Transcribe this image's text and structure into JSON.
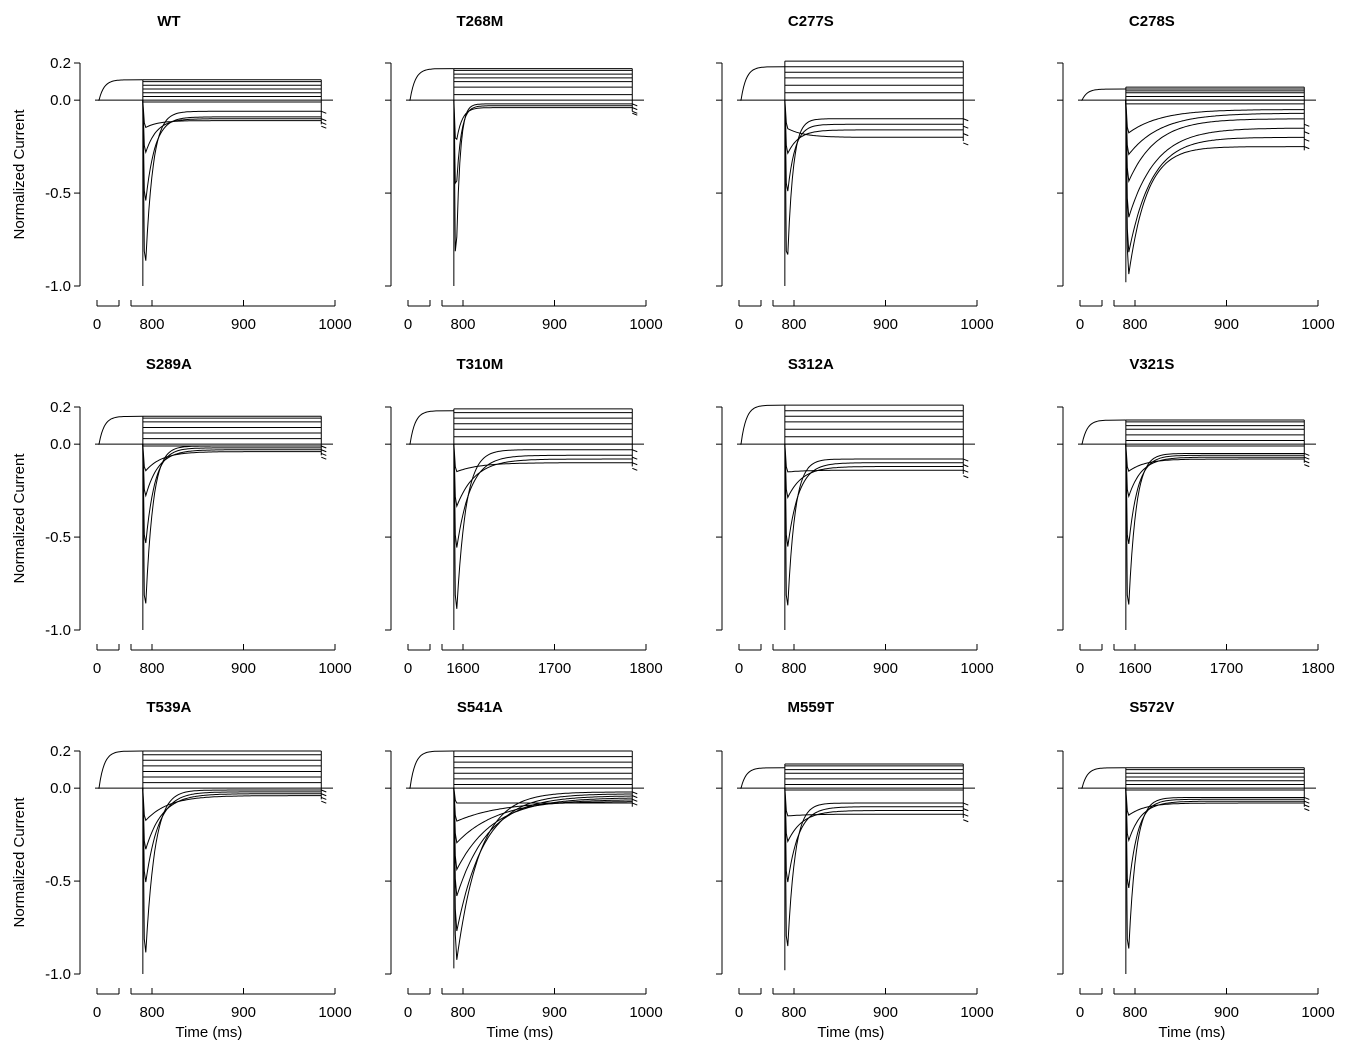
{
  "figure": {
    "ylabel": "Normalized Current",
    "xlabel": "Time (ms)"
  },
  "chart_data": [
    {
      "type": "line",
      "title": "WT",
      "ylabel": "Normalized Current",
      "xlabel": "",
      "ylim": [
        -1.0,
        0.2
      ],
      "yticks": [
        "0.2",
        "0.0",
        "-0.5",
        "-1.0"
      ],
      "xticks": [
        "0",
        "800",
        "900",
        "1000"
      ],
      "x_range": [
        800,
        1000
      ],
      "pulse_start": 790,
      "pulse_end": 985,
      "prepulse_level": 0.11,
      "step_levels": [
        0.11,
        0.1,
        0.08,
        0.06,
        0.04,
        0.02,
        -0.01
      ],
      "peaks": [
        -1.0,
        -0.6,
        -0.3,
        -0.15
      ],
      "steady": [
        -0.06,
        -0.09,
        -0.1,
        -0.11
      ],
      "tau": [
        8,
        10,
        12,
        14
      ]
    },
    {
      "type": "line",
      "title": "T268M",
      "ylabel": "",
      "xlabel": "",
      "ylim": [
        -1.0,
        0.2
      ],
      "yticks": [],
      "xticks": [
        "0",
        "800",
        "900",
        "1000"
      ],
      "x_range": [
        800,
        1000
      ],
      "pulse_start": 790,
      "pulse_end": 985,
      "prepulse_level": 0.17,
      "step_levels": [
        0.17,
        0.16,
        0.14,
        0.12,
        0.1,
        0.07,
        0.03
      ],
      "peaks": [
        -1.0,
        -0.55,
        -0.25
      ],
      "steady": [
        -0.02,
        -0.03,
        -0.04
      ],
      "tau": [
        4,
        5,
        6
      ]
    },
    {
      "type": "line",
      "title": "C277S",
      "ylabel": "",
      "xlabel": "",
      "ylim": [
        -1.0,
        0.2
      ],
      "yticks": [],
      "xticks": [
        "0",
        "800",
        "900",
        "1000"
      ],
      "x_range": [
        800,
        1000
      ],
      "pulse_start": 790,
      "pulse_end": 985,
      "prepulse_level": 0.18,
      "step_levels": [
        0.21,
        0.18,
        0.15,
        0.12,
        0.08,
        0.04,
        0.0
      ],
      "peaks": [
        -1.0,
        -0.55,
        -0.3,
        -0.15
      ],
      "steady": [
        -0.1,
        -0.13,
        -0.16,
        -0.2
      ],
      "tau": [
        6,
        8,
        12,
        18
      ]
    },
    {
      "type": "line",
      "title": "C278S",
      "ylabel": "",
      "xlabel": "",
      "ylim": [
        -1.0,
        0.2
      ],
      "yticks": [],
      "xticks": [
        "0",
        "800",
        "900",
        "1000"
      ],
      "x_range": [
        800,
        1000
      ],
      "pulse_start": 790,
      "pulse_end": 985,
      "prepulse_level": 0.06,
      "step_levels": [
        0.07,
        0.06,
        0.05,
        0.04,
        0.02,
        0.0,
        -0.02
      ],
      "peaks": [
        -0.98,
        -0.85,
        -0.65,
        -0.45,
        -0.3,
        -0.18
      ],
      "steady": [
        -0.25,
        -0.2,
        -0.15,
        -0.1,
        -0.07,
        -0.05
      ],
      "tau": [
        20,
        25,
        30,
        30,
        35,
        35
      ]
    },
    {
      "type": "line",
      "title": "S289A",
      "ylabel": "Normalized Current",
      "xlabel": "",
      "ylim": [
        -1.0,
        0.2
      ],
      "yticks": [
        "0.2",
        "0.0",
        "-0.5",
        "-1.0"
      ],
      "xticks": [
        "0",
        "800",
        "900",
        "1000"
      ],
      "x_range": [
        800,
        1000
      ],
      "pulse_start": 790,
      "pulse_end": 985,
      "prepulse_level": 0.15,
      "step_levels": [
        0.15,
        0.14,
        0.12,
        0.09,
        0.06,
        0.03,
        -0.01
      ],
      "peaks": [
        -1.0,
        -0.6,
        -0.3,
        -0.15
      ],
      "steady": [
        -0.01,
        -0.02,
        -0.03,
        -0.04
      ],
      "tau": [
        8,
        10,
        14,
        18
      ]
    },
    {
      "type": "line",
      "title": "T310M",
      "ylabel": "",
      "xlabel": "",
      "ylim": [
        -1.0,
        0.2
      ],
      "yticks": [],
      "xticks": [
        "0",
        "1600",
        "1700",
        "1800"
      ],
      "x_range": [
        1600,
        1800
      ],
      "pulse_start": 1590,
      "pulse_end": 1785,
      "prepulse_level": 0.18,
      "step_levels": [
        0.19,
        0.17,
        0.14,
        0.11,
        0.08,
        0.04,
        0.0
      ],
      "peaks": [
        -1.0,
        -0.6,
        -0.35,
        -0.15
      ],
      "steady": [
        -0.03,
        -0.06,
        -0.08,
        -0.1
      ],
      "tau": [
        10,
        15,
        20,
        25
      ]
    },
    {
      "type": "line",
      "title": "S312A",
      "ylabel": "",
      "xlabel": "",
      "ylim": [
        -1.0,
        0.2
      ],
      "yticks": [],
      "xticks": [
        "0",
        "800",
        "900",
        "1000"
      ],
      "x_range": [
        800,
        1000
      ],
      "pulse_start": 790,
      "pulse_end": 985,
      "prepulse_level": 0.21,
      "step_levels": [
        0.21,
        0.18,
        0.15,
        0.12,
        0.08,
        0.04,
        0.0
      ],
      "peaks": [
        -1.0,
        -0.6,
        -0.3,
        -0.15
      ],
      "steady": [
        -0.08,
        -0.1,
        -0.12,
        -0.14
      ],
      "tau": [
        8,
        12,
        16,
        20
      ]
    },
    {
      "type": "line",
      "title": "V321S",
      "ylabel": "",
      "xlabel": "",
      "ylim": [
        -1.0,
        0.2
      ],
      "yticks": [],
      "xticks": [
        "0",
        "1600",
        "1700",
        "1800"
      ],
      "x_range": [
        1600,
        1800
      ],
      "pulse_start": 1590,
      "pulse_end": 1785,
      "prepulse_level": 0.13,
      "step_levels": [
        0.13,
        0.12,
        0.1,
        0.08,
        0.05,
        0.02,
        -0.01
      ],
      "peaks": [
        -1.0,
        -0.6,
        -0.3,
        -0.15
      ],
      "steady": [
        -0.05,
        -0.06,
        -0.07,
        -0.08
      ],
      "tau": [
        8,
        10,
        14,
        18
      ]
    },
    {
      "type": "line",
      "title": "T539A",
      "ylabel": "Normalized Current",
      "xlabel": "Time (ms)",
      "ylim": [
        -1.0,
        0.2
      ],
      "yticks": [
        "0.2",
        "0.0",
        "-0.5",
        "-1.0"
      ],
      "xticks": [
        "0",
        "800",
        "900",
        "1000"
      ],
      "x_range": [
        800,
        1000
      ],
      "pulse_start": 790,
      "pulse_end": 985,
      "prepulse_level": 0.2,
      "step_levels": [
        0.2,
        0.18,
        0.15,
        0.12,
        0.09,
        0.06,
        0.03
      ],
      "peaks": [
        -1.0,
        -0.55,
        -0.35,
        -0.18
      ],
      "steady": [
        -0.01,
        -0.02,
        -0.03,
        -0.04
      ],
      "tau": [
        10,
        14,
        18,
        25
      ]
    },
    {
      "type": "line",
      "title": "S541A",
      "ylabel": "",
      "xlabel": "Time (ms)",
      "ylim": [
        -1.0,
        0.2
      ],
      "yticks": [],
      "xticks": [
        "0",
        "800",
        "900",
        "1000"
      ],
      "x_range": [
        800,
        1000
      ],
      "pulse_start": 790,
      "pulse_end": 985,
      "prepulse_level": 0.2,
      "step_levels": [
        0.2,
        0.17,
        0.14,
        0.11,
        0.08,
        0.05,
        0.02
      ],
      "peaks": [
        -0.97,
        -0.8,
        -0.6,
        -0.45,
        -0.3,
        -0.18,
        -0.08
      ],
      "steady": [
        -0.02,
        -0.03,
        -0.04,
        -0.05,
        -0.06,
        -0.07,
        -0.08
      ],
      "tau": [
        25,
        30,
        35,
        40,
        45,
        50,
        55
      ]
    },
    {
      "type": "line",
      "title": "M559T",
      "ylabel": "",
      "xlabel": "Time (ms)",
      "ylim": [
        -1.0,
        0.2
      ],
      "yticks": [],
      "xticks": [
        "0",
        "800",
        "900",
        "1000"
      ],
      "x_range": [
        800,
        1000
      ],
      "pulse_start": 790,
      "pulse_end": 985,
      "prepulse_level": 0.11,
      "step_levels": [
        0.13,
        0.12,
        0.1,
        0.08,
        0.05,
        0.02,
        -0.01
      ],
      "peaks": [
        -0.98,
        -0.55,
        -0.3,
        -0.15
      ],
      "steady": [
        -0.08,
        -0.1,
        -0.12,
        -0.14
      ],
      "tau": [
        8,
        12,
        16,
        22
      ]
    },
    {
      "type": "line",
      "title": "S572V",
      "ylabel": "",
      "xlabel": "Time (ms)",
      "ylim": [
        -1.0,
        0.2
      ],
      "yticks": [],
      "xticks": [
        "0",
        "800",
        "900",
        "1000"
      ],
      "x_range": [
        800,
        1000
      ],
      "pulse_start": 790,
      "pulse_end": 985,
      "prepulse_level": 0.11,
      "step_levels": [
        0.11,
        0.1,
        0.08,
        0.06,
        0.04,
        0.02,
        -0.01
      ],
      "peaks": [
        -1.0,
        -0.6,
        -0.3,
        -0.15
      ],
      "steady": [
        -0.05,
        -0.06,
        -0.07,
        -0.08
      ],
      "tau": [
        8,
        10,
        14,
        18
      ]
    }
  ]
}
